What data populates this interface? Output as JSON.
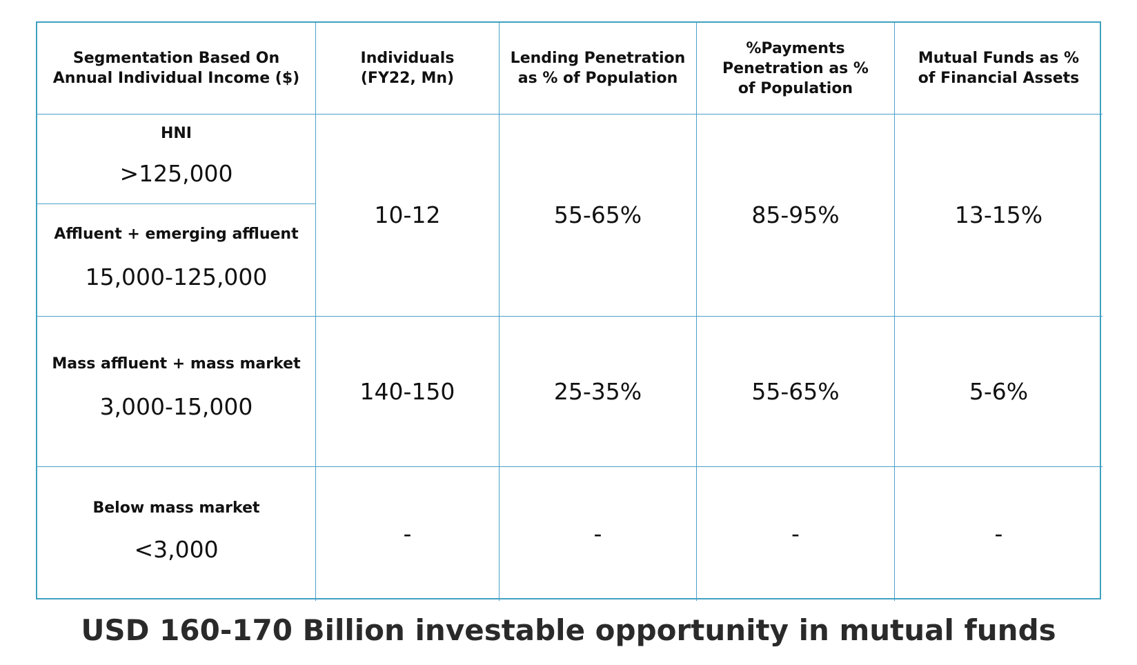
{
  "table": {
    "headers": [
      "Segmentation Based On\nAnnual Individual Income ($)",
      "Individuals\n(FY22, Mn)",
      "Lending Penetration\nas % of Population",
      "%Payments\nPenetration as %\nof Population",
      "Mutual Funds as %\nof Financial Assets"
    ],
    "segments": [
      {
        "name": "HNI",
        "range": ">125,000"
      },
      {
        "name": "Affluent + emerging affluent",
        "range": "15,000-125,000"
      },
      {
        "name": "Mass affluent + mass market",
        "range": "3,000-15,000"
      },
      {
        "name": "Below mass market",
        "range": "<3,000"
      }
    ],
    "rows": [
      {
        "individuals": "10-12",
        "lending": "55-65%",
        "payments": "85-95%",
        "mutual_funds": "13-15%"
      },
      {
        "individuals": "140-150",
        "lending": "25-35%",
        "payments": "55-65%",
        "mutual_funds": "5-6%"
      },
      {
        "individuals": "-",
        "lending": "-",
        "payments": "-",
        "mutual_funds": "-"
      }
    ],
    "border_color": "#4a9fc8"
  },
  "footer": {
    "caption": "USD 160-170 Billion investable opportunity in mutual funds"
  }
}
